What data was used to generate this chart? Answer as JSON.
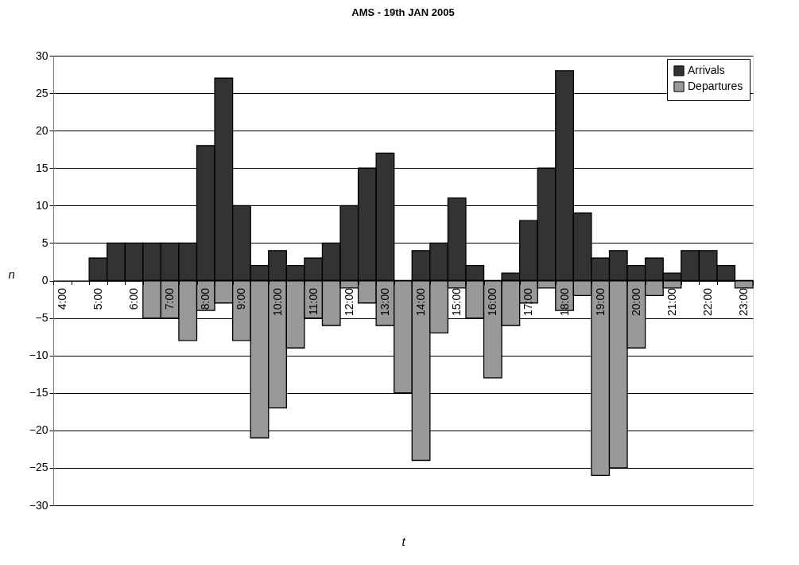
{
  "chart_data": {
    "type": "bar",
    "title": "AMS - 19th JAN 2005",
    "xlabel": "t",
    "ylabel": "n",
    "categories": [
      "4:00",
      null,
      "5:00",
      null,
      "6:00",
      null,
      "7:00",
      null,
      "8:00",
      null,
      "9:00",
      null,
      "10:00",
      null,
      "11:00",
      null,
      "12:00",
      null,
      "13:00",
      null,
      "14:00",
      null,
      "15:00",
      null,
      "16:00",
      null,
      "17:00",
      null,
      "18:00",
      null,
      "19:00",
      null,
      "20:00",
      null,
      "21:00",
      null,
      "22:00",
      null,
      "23:00"
    ],
    "series": [
      {
        "name": "Arrivals",
        "color": "#333333",
        "values": [
          0,
          0,
          3,
          5,
          5,
          5,
          5,
          5,
          18,
          27,
          10,
          2,
          4,
          2,
          3,
          5,
          10,
          15,
          17,
          0,
          4,
          5,
          11,
          2,
          0,
          1,
          8,
          15,
          28,
          9,
          3,
          4,
          2,
          3,
          1,
          4,
          4,
          2,
          0
        ]
      },
      {
        "name": "Departures",
        "color": "#999999",
        "values": [
          0,
          0,
          0,
          0,
          0,
          -5,
          -5,
          -8,
          -4,
          -3,
          -8,
          -21,
          -17,
          -9,
          -5,
          -6,
          -1,
          -3,
          -6,
          -15,
          -24,
          -7,
          -1,
          -5,
          -13,
          -6,
          -3,
          -1,
          -4,
          -2,
          -26,
          -25,
          -9,
          -2,
          -1,
          0,
          0,
          0,
          -1
        ]
      }
    ],
    "ylim": [
      -30,
      30
    ],
    "yticks": [
      -30,
      -25,
      -20,
      -15,
      -10,
      -5,
      0,
      5,
      10,
      15,
      20,
      25,
      30
    ],
    "grid": "y",
    "legend": "top right",
    "stacked": true
  }
}
